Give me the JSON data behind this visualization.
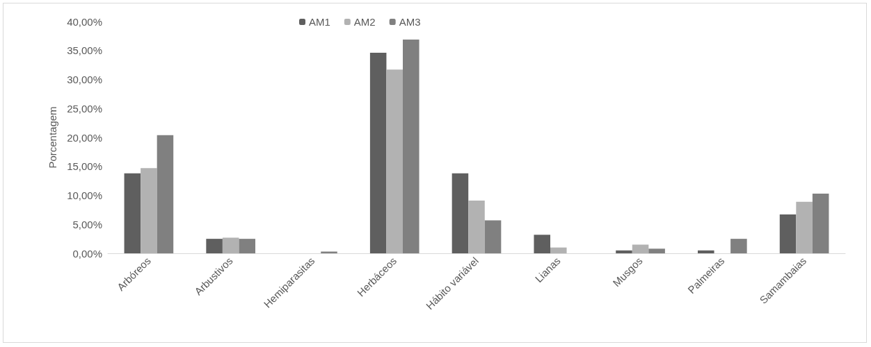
{
  "chart_data": {
    "type": "bar",
    "ylabel": "Porcentagem",
    "categories": [
      "Arbóreos",
      "Arbustivos",
      "Hemiparasitas",
      "Herbáceos",
      "Hábito variável",
      "Lianas",
      "Musgos",
      "Palmeiras",
      "Samambaias"
    ],
    "series": [
      {
        "name": "AM1",
        "color": "#5f5f5f",
        "values": [
          13.8,
          2.5,
          0,
          34.6,
          13.8,
          3.2,
          0.5,
          0.5,
          6.7
        ]
      },
      {
        "name": "AM2",
        "color": "#b2b2b2",
        "values": [
          14.7,
          2.7,
          0,
          31.7,
          9.1,
          1.0,
          1.5,
          0,
          8.9
        ]
      },
      {
        "name": "AM3",
        "color": "#808080",
        "values": [
          20.4,
          2.5,
          0.3,
          36.9,
          5.7,
          0,
          0.8,
          2.5,
          10.3
        ]
      }
    ],
    "ylim": [
      0,
      40
    ],
    "yticks": [
      {
        "value": 0,
        "label": "0,00%"
      },
      {
        "value": 5,
        "label": "5,00%"
      },
      {
        "value": 10,
        "label": "10,00%"
      },
      {
        "value": 15,
        "label": "15,00%"
      },
      {
        "value": 20,
        "label": "20,00%"
      },
      {
        "value": 25,
        "label": "25,00%"
      },
      {
        "value": 30,
        "label": "30,00%"
      },
      {
        "value": 35,
        "label": "35,00%"
      },
      {
        "value": 40,
        "label": "40,00%"
      }
    ],
    "grid": false,
    "legend": "top"
  }
}
